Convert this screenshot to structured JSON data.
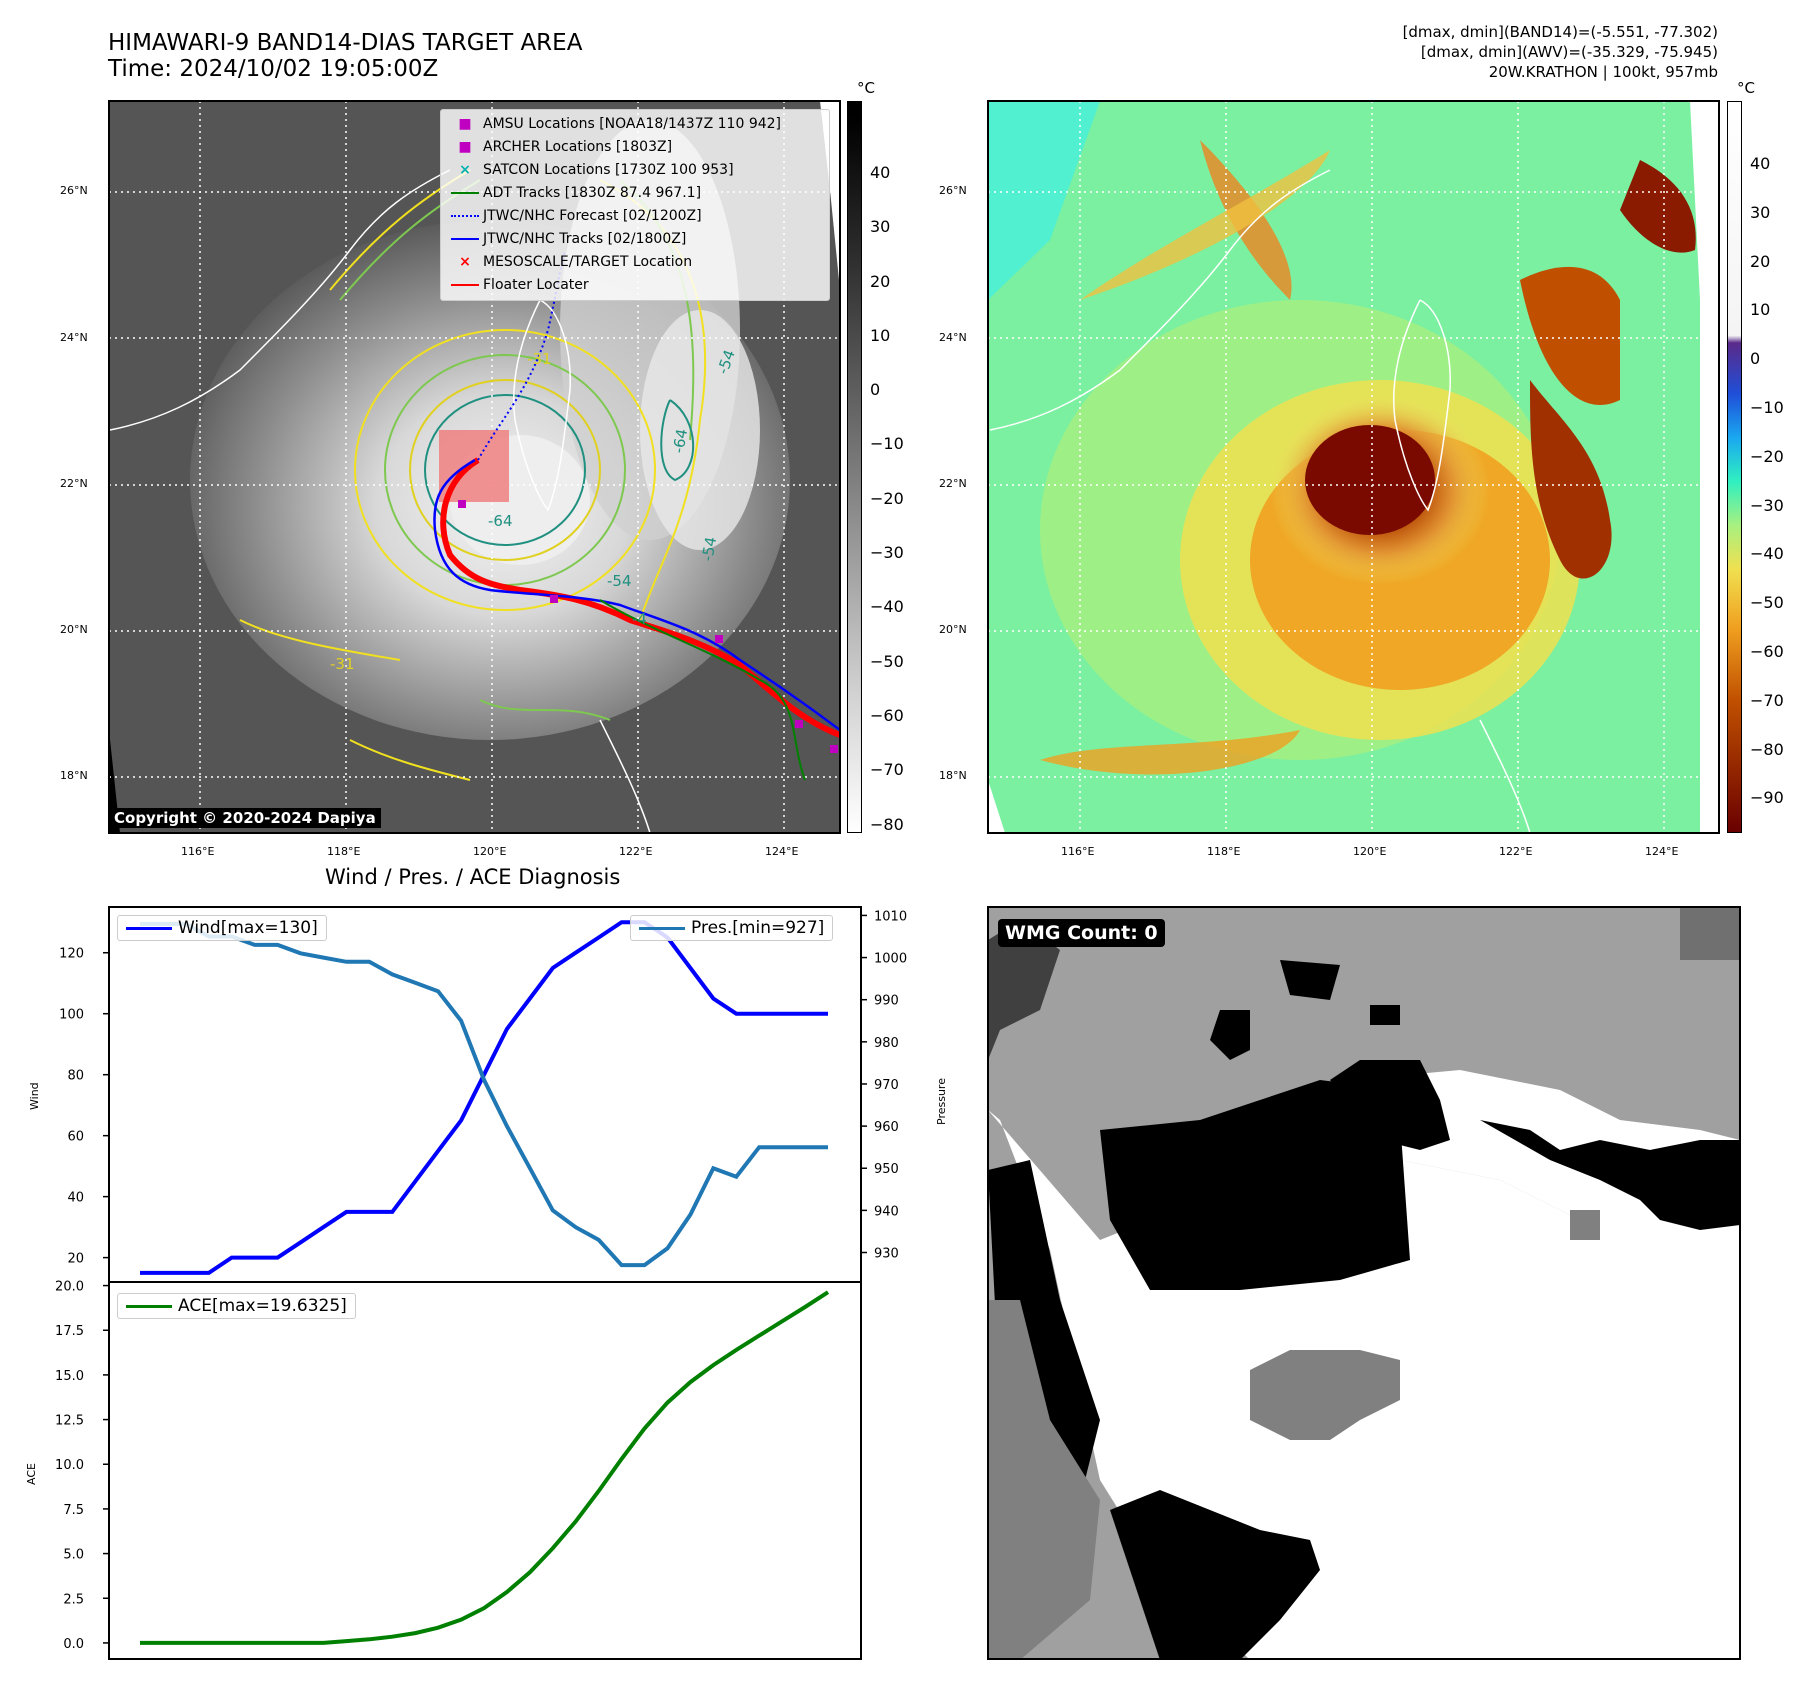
{
  "header": {
    "title_line1": "HIMAWARI-9 BAND14-DIAS TARGET AREA",
    "title_line2": "Time: 2024/10/02 19:05:00Z",
    "info_line1": "[dmax, dmin](BAND14)=(-5.551, -77.302)",
    "info_line2": "[dmax, dmin](AWV)=(-35.329, -75.945)",
    "info_line3": "20W.KRATHON | 100kt, 957mb"
  },
  "map": {
    "lon_labels": [
      "116°E",
      "118°E",
      "120°E",
      "122°E",
      "124°E"
    ],
    "lat_labels": [
      "26°N",
      "24°N",
      "22°N",
      "20°N",
      "18°N"
    ],
    "copyright": "Copyright © 2020-2024 Dapiya",
    "legend": [
      {
        "label": "AMSU Locations [NOAA18/1437Z 110 942]",
        "color": "#c000c0",
        "marker": "square"
      },
      {
        "label": "ARCHER Locations [1803Z]",
        "color": "#c000c0",
        "marker": "square"
      },
      {
        "label": "SATCON Locations [1730Z 100 953]",
        "color": "#00b0b0",
        "marker": "x"
      },
      {
        "label": "ADT Tracks [1830Z 87.4 967.1]",
        "color": "#008000",
        "marker": "line"
      },
      {
        "label": "JTWC/NHC Forecast [02/1200Z]",
        "color": "#0000ff",
        "marker": "dotted"
      },
      {
        "label": "JTWC/NHC Tracks [02/1800Z]",
        "color": "#0000ff",
        "marker": "line-dot"
      },
      {
        "label": "MESOSCALE/TARGET Location",
        "color": "#ff0000",
        "marker": "x"
      },
      {
        "label": "Floater Locater",
        "color": "#ff0000",
        "marker": "line"
      }
    ],
    "contour_labels": [
      "-64",
      "-54",
      "-64",
      "-54",
      "-31",
      "-31",
      "-54",
      "-4"
    ]
  },
  "colorbar_gray": {
    "unit": "°C",
    "ticks": [
      "40",
      "30",
      "20",
      "10",
      "0",
      "−10",
      "−20",
      "−30",
      "−40",
      "−50",
      "−60",
      "−70",
      "−80"
    ]
  },
  "colorbar_color": {
    "unit": "°C",
    "ticks": [
      "40",
      "30",
      "20",
      "10",
      "0",
      "−10",
      "−20",
      "−30",
      "−40",
      "−50",
      "−60",
      "−70",
      "−80",
      "−90"
    ]
  },
  "wmg": {
    "label": "WMG Count: 0"
  },
  "chart_data": [
    {
      "type": "line",
      "title": "Wind / Pres. / ACE Diagnosis",
      "ylabel": "Wind",
      "ylabel_right": "Pressure",
      "ylim": [
        12,
        135
      ],
      "ylim_right": [
        923,
        1012
      ],
      "y_ticks": [
        20,
        40,
        60,
        80,
        100,
        120
      ],
      "y_ticks_right": [
        930,
        940,
        950,
        960,
        970,
        980,
        990,
        1000,
        1010
      ],
      "series": [
        {
          "name": "Wind[max=130]",
          "color": "#0000ff",
          "values": [
            15,
            15,
            15,
            15,
            20,
            20,
            20,
            25,
            30,
            35,
            35,
            35,
            45,
            55,
            65,
            80,
            95,
            105,
            115,
            120,
            125,
            130,
            130,
            125,
            115,
            105,
            100,
            100,
            100,
            100,
            100
          ]
        },
        {
          "name": "Pres.[min=927]",
          "color": "#1f77b4",
          "axis": "right",
          "values": [
            1008,
            1008,
            1008,
            1005,
            1005,
            1003,
            1003,
            1001,
            1000,
            999,
            999,
            996,
            994,
            992,
            985,
            971,
            960,
            950,
            940,
            936,
            933,
            927,
            927,
            931,
            939,
            950,
            948,
            955,
            955,
            955,
            955
          ]
        }
      ]
    },
    {
      "type": "line",
      "ylabel": "ACE",
      "ylim": [
        -0.9,
        20.2
      ],
      "y_ticks": [
        "0.0",
        "2.5",
        "5.0",
        "7.5",
        "10.0",
        "12.5",
        "15.0",
        "17.5",
        "20.0"
      ],
      "series": [
        {
          "name": "ACE[max=19.6325]",
          "color": "#008000",
          "values": [
            0,
            0,
            0,
            0,
            0,
            0,
            0,
            0,
            0,
            0.1,
            0.2,
            0.35,
            0.55,
            0.85,
            1.3,
            1.95,
            2.85,
            3.95,
            5.3,
            6.8,
            8.5,
            10.3,
            12.0,
            13.45,
            14.6,
            15.55,
            16.4,
            17.2,
            18.0,
            18.8,
            19.63
          ]
        }
      ]
    }
  ]
}
